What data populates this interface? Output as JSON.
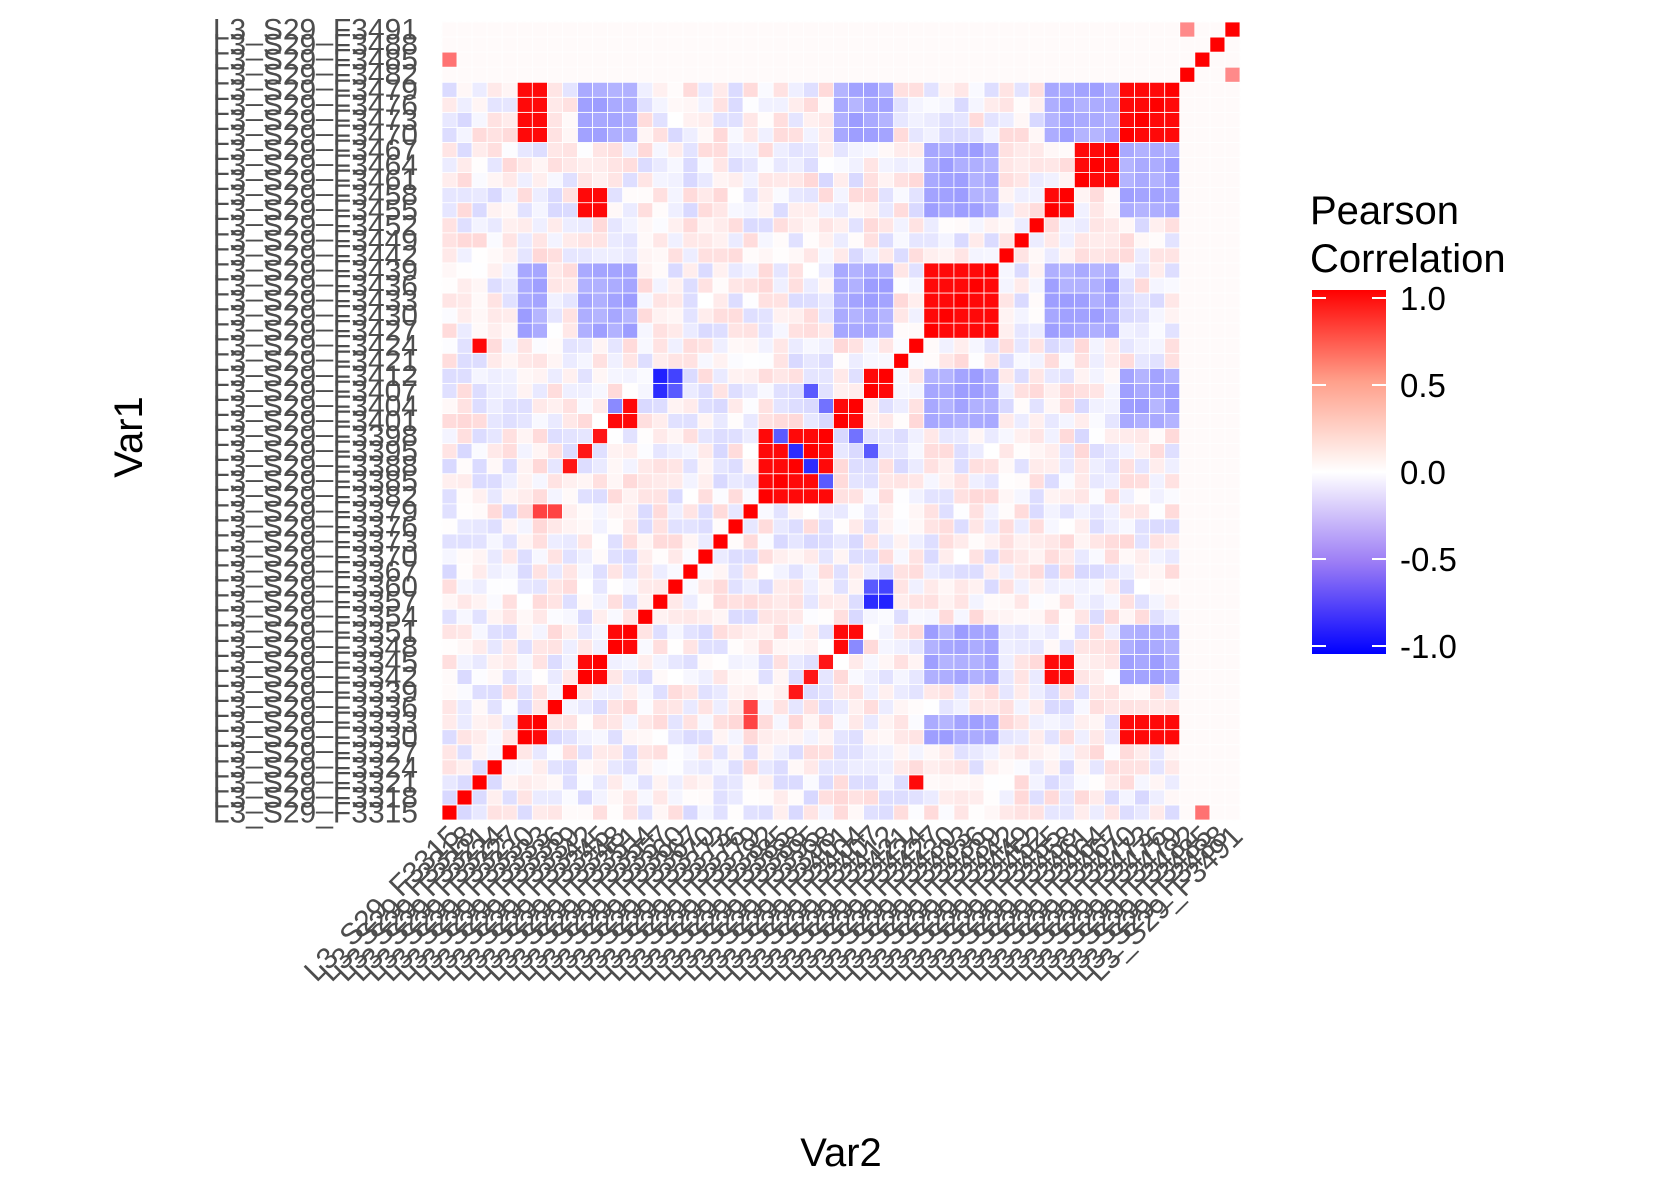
{
  "chart_data": {
    "type": "heatmap",
    "title": "",
    "xlabel": "Var2",
    "ylabel": "Var1",
    "legend": {
      "title_lines": [
        "Pearson",
        "Correlation"
      ],
      "placement": "right",
      "ticks": [
        1.0,
        0.5,
        0.0,
        -0.5,
        -1.0
      ],
      "tick_labels": [
        "1.0",
        "0.5",
        "0.0",
        "-0.5",
        "-1.0"
      ],
      "range": [
        -1,
        1
      ],
      "colors": {
        "low": "#0000ff",
        "mid": "#ffffff",
        "high": "#ff0000"
      }
    },
    "variables": [
      "L3_S29_F3315",
      "L3_S29_F3318",
      "L3_S29_F3321",
      "L3_S29_F3324",
      "L3_S29_F3327",
      "L3_S29_F3330",
      "L3_S29_F3333",
      "L3_S29_F3336",
      "L3_S29_F3339",
      "L3_S29_F3342",
      "L3_S29_F3345",
      "L3_S29_F3348",
      "L3_S29_F3351",
      "L3_S29_F3354",
      "L3_S29_F3357",
      "L3_S29_F3360",
      "L3_S29_F3367",
      "L3_S29_F3370",
      "L3_S29_F3373",
      "L3_S29_F3376",
      "L3_S29_F3379",
      "L3_S29_F3382",
      "L3_S29_F3385",
      "L3_S29_F3388",
      "L3_S29_F3395",
      "L3_S29_F3398",
      "L3_S29_F3401",
      "L3_S29_F3404",
      "L3_S29_F3407",
      "L3_S29_F3412",
      "L3_S29_F3421",
      "L3_S29_F3424",
      "L3_S29_F3427",
      "L3_S29_F3430",
      "L3_S29_F3433",
      "L3_S29_F3436",
      "L3_S29_F3439",
      "L3_S29_F3442",
      "L3_S29_F3449",
      "L3_S29_F3452",
      "L3_S29_F3455",
      "L3_S29_F3458",
      "L3_S29_F3461",
      "L3_S29_F3464",
      "L3_S29_F3467",
      "L3_S29_F3470",
      "L3_S29_F3473",
      "L3_S29_F3476",
      "L3_S29_F3479",
      "L3_S29_F3482",
      "L3_S29_F3485",
      "L3_S29_F3488",
      "L3_S29_F3491"
    ],
    "groups": [
      [
        5,
        6,
        45,
        46,
        47,
        48
      ],
      [
        21,
        22,
        23,
        24,
        25
      ],
      [
        32,
        33,
        34,
        35,
        36
      ],
      [
        9,
        10,
        40,
        41
      ],
      [
        11,
        12,
        26,
        27
      ],
      [
        14,
        28,
        29
      ],
      [
        42,
        43,
        44
      ],
      [
        2,
        31
      ]
    ],
    "strong_values": [
      {
        "row": 6,
        "col": 20,
        "value": 0.7
      },
      {
        "row": 7,
        "col": 20,
        "value": 0.7
      },
      {
        "row": 8,
        "col": 23,
        "value": 0.9
      },
      {
        "row": 9,
        "col": 24,
        "value": 0.9
      },
      {
        "row": 10,
        "col": 25,
        "value": 0.9
      },
      {
        "row": 23,
        "col": 24,
        "value": -0.8
      },
      {
        "row": 22,
        "col": 25,
        "value": -0.6
      },
      {
        "row": 29,
        "col": 14,
        "value": -0.85
      },
      {
        "row": 28,
        "col": 14,
        "value": -0.8
      },
      {
        "row": 29,
        "col": 15,
        "value": -0.7
      },
      {
        "row": 28,
        "col": 15,
        "value": -0.6
      },
      {
        "row": 27,
        "col": 11,
        "value": -0.4
      },
      {
        "row": 24,
        "col": 28,
        "value": -0.6
      },
      {
        "row": 25,
        "col": 27,
        "value": -0.5
      },
      {
        "row": 0,
        "col": 50,
        "value": 0.5
      },
      {
        "row": 52,
        "col": 49,
        "value": 0.4
      },
      {
        "row": 51,
        "col": 50,
        "value": 0.2
      }
    ]
  }
}
